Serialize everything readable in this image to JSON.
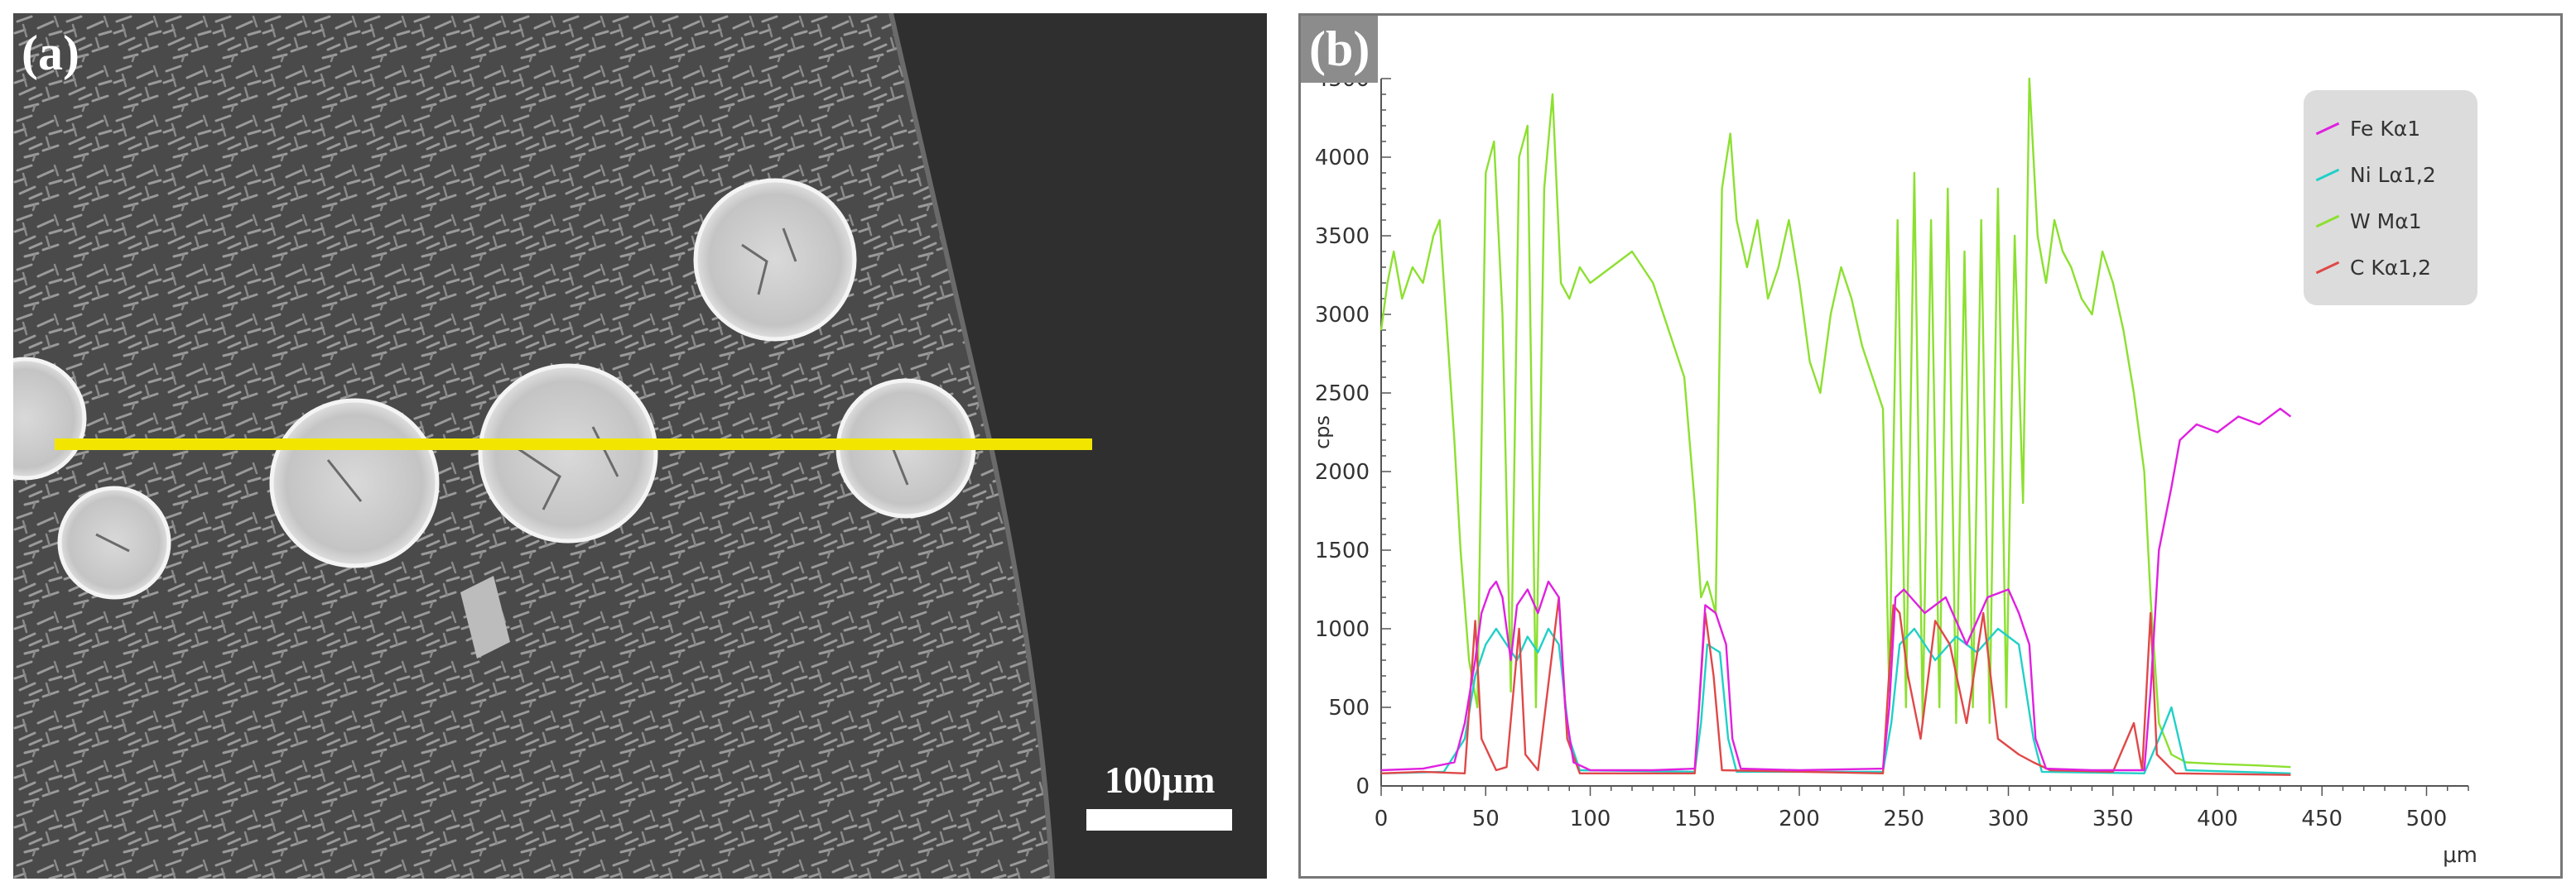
{
  "panel_a": {
    "label": "(a)",
    "scale_bar_label": "100μm",
    "line_color": "#f2e600"
  },
  "panel_b": {
    "label": "(b)"
  },
  "chart_data": {
    "type": "line",
    "ylabel": "cps",
    "xlabel": "μm",
    "xlim": [
      0,
      520
    ],
    "ylim": [
      0,
      4500
    ],
    "x_ticks": [
      0,
      50,
      100,
      150,
      200,
      250,
      300,
      350,
      400,
      450,
      500
    ],
    "y_ticks": [
      0,
      500,
      1000,
      1500,
      2000,
      2500,
      3000,
      3500,
      4000,
      4500
    ],
    "legend_position": "top-right",
    "series": [
      {
        "name": "Fe Kα1",
        "color": "#e020e0",
        "points": [
          [
            0,
            100
          ],
          [
            20,
            110
          ],
          [
            35,
            150
          ],
          [
            40,
            400
          ],
          [
            45,
            800
          ],
          [
            48,
            1100
          ],
          [
            52,
            1250
          ],
          [
            55,
            1300
          ],
          [
            58,
            1200
          ],
          [
            62,
            800
          ],
          [
            65,
            1150
          ],
          [
            70,
            1250
          ],
          [
            75,
            1100
          ],
          [
            80,
            1300
          ],
          [
            85,
            1200
          ],
          [
            88,
            500
          ],
          [
            92,
            150
          ],
          [
            100,
            100
          ],
          [
            130,
            100
          ],
          [
            150,
            110
          ],
          [
            152,
            500
          ],
          [
            155,
            1150
          ],
          [
            160,
            1100
          ],
          [
            165,
            900
          ],
          [
            168,
            300
          ],
          [
            172,
            110
          ],
          [
            200,
            100
          ],
          [
            240,
            110
          ],
          [
            243,
            500
          ],
          [
            246,
            1200
          ],
          [
            250,
            1250
          ],
          [
            260,
            1100
          ],
          [
            270,
            1200
          ],
          [
            280,
            900
          ],
          [
            290,
            1200
          ],
          [
            300,
            1250
          ],
          [
            305,
            1100
          ],
          [
            310,
            900
          ],
          [
            313,
            300
          ],
          [
            318,
            110
          ],
          [
            340,
            100
          ],
          [
            365,
            100
          ],
          [
            368,
            600
          ],
          [
            372,
            1500
          ],
          [
            378,
            1900
          ],
          [
            382,
            2200
          ],
          [
            390,
            2300
          ],
          [
            400,
            2250
          ],
          [
            410,
            2350
          ],
          [
            420,
            2300
          ],
          [
            430,
            2400
          ],
          [
            435,
            2350
          ]
        ]
      },
      {
        "name": "Ni Lα1,2",
        "color": "#20d0c8",
        "points": [
          [
            0,
            80
          ],
          [
            30,
            90
          ],
          [
            40,
            300
          ],
          [
            45,
            700
          ],
          [
            50,
            900
          ],
          [
            55,
            1000
          ],
          [
            60,
            900
          ],
          [
            65,
            800
          ],
          [
            70,
            950
          ],
          [
            75,
            850
          ],
          [
            80,
            1000
          ],
          [
            85,
            900
          ],
          [
            90,
            300
          ],
          [
            95,
            100
          ],
          [
            150,
            90
          ],
          [
            153,
            400
          ],
          [
            156,
            900
          ],
          [
            162,
            850
          ],
          [
            166,
            300
          ],
          [
            170,
            90
          ],
          [
            240,
            90
          ],
          [
            244,
            400
          ],
          [
            248,
            900
          ],
          [
            255,
            1000
          ],
          [
            265,
            800
          ],
          [
            275,
            950
          ],
          [
            285,
            850
          ],
          [
            295,
            1000
          ],
          [
            305,
            900
          ],
          [
            312,
            300
          ],
          [
            316,
            90
          ],
          [
            365,
            80
          ],
          [
            372,
            300
          ],
          [
            378,
            500
          ],
          [
            385,
            100
          ],
          [
            435,
            80
          ]
        ]
      },
      {
        "name": "W Mα1",
        "color": "#8ce030",
        "points": [
          [
            0,
            2900
          ],
          [
            3,
            3200
          ],
          [
            6,
            3400
          ],
          [
            10,
            3100
          ],
          [
            15,
            3300
          ],
          [
            20,
            3200
          ],
          [
            25,
            3500
          ],
          [
            28,
            3600
          ],
          [
            32,
            2800
          ],
          [
            35,
            2200
          ],
          [
            38,
            1500
          ],
          [
            42,
            800
          ],
          [
            46,
            500
          ],
          [
            50,
            3900
          ],
          [
            54,
            4100
          ],
          [
            58,
            3000
          ],
          [
            62,
            600
          ],
          [
            66,
            4000
          ],
          [
            70,
            4200
          ],
          [
            74,
            500
          ],
          [
            78,
            3800
          ],
          [
            82,
            4400
          ],
          [
            86,
            3200
          ],
          [
            90,
            3100
          ],
          [
            95,
            3300
          ],
          [
            100,
            3200
          ],
          [
            110,
            3300
          ],
          [
            120,
            3400
          ],
          [
            130,
            3200
          ],
          [
            140,
            2800
          ],
          [
            145,
            2600
          ],
          [
            150,
            1800
          ],
          [
            153,
            1200
          ],
          [
            156,
            1300
          ],
          [
            160,
            1100
          ],
          [
            163,
            3800
          ],
          [
            167,
            4150
          ],
          [
            170,
            3600
          ],
          [
            175,
            3300
          ],
          [
            180,
            3600
          ],
          [
            185,
            3100
          ],
          [
            190,
            3300
          ],
          [
            195,
            3600
          ],
          [
            200,
            3200
          ],
          [
            205,
            2700
          ],
          [
            210,
            2500
          ],
          [
            215,
            3000
          ],
          [
            220,
            3300
          ],
          [
            225,
            3100
          ],
          [
            230,
            2800
          ],
          [
            235,
            2600
          ],
          [
            240,
            2400
          ],
          [
            243,
            600
          ],
          [
            247,
            3600
          ],
          [
            251,
            500
          ],
          [
            255,
            3900
          ],
          [
            259,
            400
          ],
          [
            263,
            3600
          ],
          [
            267,
            500
          ],
          [
            271,
            3800
          ],
          [
            275,
            400
          ],
          [
            279,
            3400
          ],
          [
            283,
            500
          ],
          [
            287,
            3600
          ],
          [
            291,
            400
          ],
          [
            295,
            3800
          ],
          [
            299,
            500
          ],
          [
            303,
            3500
          ],
          [
            307,
            1800
          ],
          [
            310,
            4500
          ],
          [
            314,
            3500
          ],
          [
            318,
            3200
          ],
          [
            322,
            3600
          ],
          [
            326,
            3400
          ],
          [
            330,
            3300
          ],
          [
            335,
            3100
          ],
          [
            340,
            3000
          ],
          [
            345,
            3400
          ],
          [
            350,
            3200
          ],
          [
            355,
            2900
          ],
          [
            360,
            2500
          ],
          [
            365,
            2000
          ],
          [
            368,
            1200
          ],
          [
            372,
            400
          ],
          [
            378,
            200
          ],
          [
            385,
            150
          ],
          [
            400,
            140
          ],
          [
            420,
            130
          ],
          [
            435,
            120
          ]
        ]
      },
      {
        "name": "C Kα1,2",
        "color": "#e04848",
        "points": [
          [
            0,
            80
          ],
          [
            20,
            90
          ],
          [
            40,
            80
          ],
          [
            45,
            1050
          ],
          [
            48,
            300
          ],
          [
            55,
            100
          ],
          [
            60,
            120
          ],
          [
            66,
            1000
          ],
          [
            69,
            200
          ],
          [
            75,
            100
          ],
          [
            85,
            1200
          ],
          [
            89,
            300
          ],
          [
            95,
            80
          ],
          [
            150,
            80
          ],
          [
            155,
            1100
          ],
          [
            159,
            700
          ],
          [
            163,
            100
          ],
          [
            240,
            80
          ],
          [
            245,
            1150
          ],
          [
            248,
            1100
          ],
          [
            252,
            700
          ],
          [
            258,
            300
          ],
          [
            265,
            1050
          ],
          [
            272,
            900
          ],
          [
            280,
            400
          ],
          [
            288,
            1100
          ],
          [
            295,
            300
          ],
          [
            305,
            200
          ],
          [
            312,
            150
          ],
          [
            320,
            100
          ],
          [
            350,
            90
          ],
          [
            360,
            400
          ],
          [
            364,
            100
          ],
          [
            368,
            1100
          ],
          [
            371,
            200
          ],
          [
            380,
            80
          ],
          [
            435,
            70
          ]
        ]
      }
    ]
  }
}
